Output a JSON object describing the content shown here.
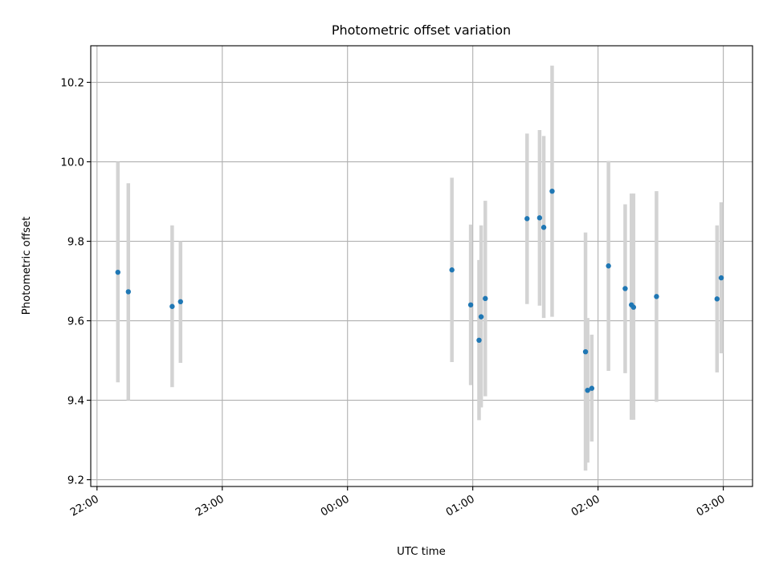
{
  "chart_data": {
    "type": "scatter",
    "title": "Photometric offset variation",
    "xlabel": "UTC time",
    "ylabel": "Photometric offset",
    "x_axis_type": "time",
    "x_ticks": [
      "22:00",
      "23:00",
      "00:00",
      "01:00",
      "02:00",
      "03:00"
    ],
    "y_ticks": [
      9.2,
      9.4,
      9.6,
      9.8,
      10.0,
      10.2
    ],
    "xlim": [
      "21:57",
      "03:14"
    ],
    "ylim": [
      9.183,
      10.292
    ],
    "grid": true,
    "marker_color": "#1f77b4",
    "errorbar_color": "#d3d3d3",
    "series": [
      {
        "points": [
          {
            "x": "22:10",
            "y": 9.722,
            "ylow": 9.445,
            "yhigh": 10.0
          },
          {
            "x": "22:15",
            "y": 9.673,
            "ylow": 9.4,
            "yhigh": 9.946
          },
          {
            "x": "22:36",
            "y": 9.636,
            "ylow": 9.433,
            "yhigh": 9.84
          },
          {
            "x": "22:40",
            "y": 9.648,
            "ylow": 9.494,
            "yhigh": 9.8
          },
          {
            "x": "00:50",
            "y": 9.728,
            "ylow": 9.496,
            "yhigh": 9.96
          },
          {
            "x": "00:59",
            "y": 9.64,
            "ylow": 9.438,
            "yhigh": 9.842
          },
          {
            "x": "01:03",
            "y": 9.551,
            "ylow": 9.35,
            "yhigh": 9.753
          },
          {
            "x": "01:04",
            "y": 9.61,
            "ylow": 9.382,
            "yhigh": 9.84
          },
          {
            "x": "01:06",
            "y": 9.656,
            "ylow": 9.41,
            "yhigh": 9.902
          },
          {
            "x": "01:26",
            "y": 9.857,
            "ylow": 9.642,
            "yhigh": 10.071
          },
          {
            "x": "01:32",
            "y": 9.859,
            "ylow": 9.638,
            "yhigh": 10.08
          },
          {
            "x": "01:34",
            "y": 9.835,
            "ylow": 9.607,
            "yhigh": 10.065
          },
          {
            "x": "01:38",
            "y": 9.926,
            "ylow": 9.61,
            "yhigh": 10.242
          },
          {
            "x": "01:54",
            "y": 9.522,
            "ylow": 9.223,
            "yhigh": 9.822
          },
          {
            "x": "01:55",
            "y": 9.425,
            "ylow": 9.243,
            "yhigh": 9.607
          },
          {
            "x": "01:57",
            "y": 9.43,
            "ylow": 9.296,
            "yhigh": 9.565
          },
          {
            "x": "02:05",
            "y": 9.738,
            "ylow": 9.474,
            "yhigh": 10.002
          },
          {
            "x": "02:13",
            "y": 9.681,
            "ylow": 9.468,
            "yhigh": 9.893
          },
          {
            "x": "02:16",
            "y": 9.64,
            "ylow": 9.351,
            "yhigh": 9.92
          },
          {
            "x": "02:17",
            "y": 9.634,
            "ylow": 9.351,
            "yhigh": 9.92
          },
          {
            "x": "02:28",
            "y": 9.661,
            "ylow": 9.396,
            "yhigh": 9.926
          },
          {
            "x": "02:57",
            "y": 9.655,
            "ylow": 9.47,
            "yhigh": 9.84
          },
          {
            "x": "02:59",
            "y": 9.708,
            "ylow": 9.518,
            "yhigh": 9.898
          }
        ]
      }
    ]
  }
}
